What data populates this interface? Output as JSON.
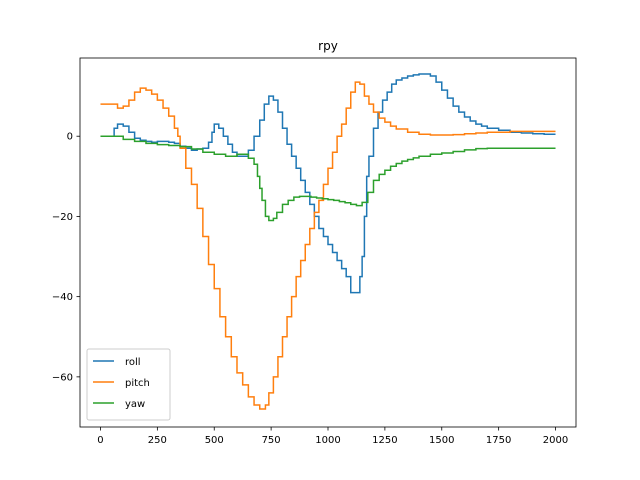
{
  "chart_data": {
    "type": "line",
    "title": "rpy",
    "xlabel": "",
    "ylabel": "",
    "xlim": [
      -90,
      2090
    ],
    "ylim": [
      -72.5,
      19.5
    ],
    "xticks": [
      0,
      250,
      500,
      750,
      1000,
      1250,
      1500,
      1750,
      2000
    ],
    "yticks": [
      -60,
      -40,
      -20,
      0
    ],
    "ytick_labels": [
      "−60",
      "−40",
      "−20",
      "0"
    ],
    "grid": false,
    "legend_position": "lower-left",
    "step": true,
    "series": [
      {
        "name": "roll",
        "color": "#1f77b4",
        "points": [
          [
            0,
            0
          ],
          [
            50,
            0
          ],
          [
            60,
            2
          ],
          [
            75,
            3
          ],
          [
            100,
            2.5
          ],
          [
            125,
            1
          ],
          [
            150,
            -0.5
          ],
          [
            175,
            -1
          ],
          [
            200,
            -1.3
          ],
          [
            225,
            -1.5
          ],
          [
            250,
            -1.3
          ],
          [
            275,
            -1.3
          ],
          [
            300,
            -1.5
          ],
          [
            325,
            -1.8
          ],
          [
            350,
            -2.5
          ],
          [
            375,
            -3
          ],
          [
            400,
            -3.5
          ],
          [
            425,
            -3.2
          ],
          [
            450,
            -3
          ],
          [
            475,
            -1.5
          ],
          [
            490,
            1
          ],
          [
            500,
            3
          ],
          [
            520,
            2
          ],
          [
            540,
            0
          ],
          [
            560,
            -2
          ],
          [
            580,
            -4
          ],
          [
            600,
            -5
          ],
          [
            625,
            -5
          ],
          [
            650,
            -3.5
          ],
          [
            675,
            0
          ],
          [
            700,
            4
          ],
          [
            720,
            8
          ],
          [
            740,
            10
          ],
          [
            760,
            9
          ],
          [
            780,
            6
          ],
          [
            800,
            2
          ],
          [
            820,
            -2
          ],
          [
            840,
            -5
          ],
          [
            860,
            -8
          ],
          [
            880,
            -11
          ],
          [
            900,
            -14
          ],
          [
            920,
            -17
          ],
          [
            940,
            -20
          ],
          [
            960,
            -23
          ],
          [
            980,
            -25
          ],
          [
            1000,
            -27
          ],
          [
            1020,
            -29
          ],
          [
            1040,
            -31
          ],
          [
            1060,
            -33
          ],
          [
            1080,
            -35
          ],
          [
            1100,
            -39
          ],
          [
            1120,
            -39
          ],
          [
            1140,
            -35
          ],
          [
            1150,
            -30
          ],
          [
            1160,
            -20
          ],
          [
            1170,
            -10
          ],
          [
            1180,
            -5
          ],
          [
            1200,
            2
          ],
          [
            1220,
            6
          ],
          [
            1240,
            9
          ],
          [
            1260,
            11
          ],
          [
            1280,
            13
          ],
          [
            1300,
            14
          ],
          [
            1325,
            14.5
          ],
          [
            1350,
            15
          ],
          [
            1375,
            15.3
          ],
          [
            1400,
            15.5
          ],
          [
            1425,
            15.5
          ],
          [
            1450,
            15
          ],
          [
            1475,
            13.5
          ],
          [
            1500,
            11.5
          ],
          [
            1525,
            9.5
          ],
          [
            1550,
            7.5
          ],
          [
            1575,
            6
          ],
          [
            1600,
            4.8
          ],
          [
            1625,
            3.8
          ],
          [
            1650,
            3
          ],
          [
            1675,
            2.5
          ],
          [
            1700,
            2
          ],
          [
            1750,
            1.5
          ],
          [
            1800,
            1
          ],
          [
            1850,
            0.8
          ],
          [
            1900,
            0.6
          ],
          [
            1950,
            0.5
          ],
          [
            2000,
            0.5
          ]
        ]
      },
      {
        "name": "pitch",
        "color": "#ff7f0e",
        "points": [
          [
            0,
            8
          ],
          [
            50,
            8
          ],
          [
            75,
            7
          ],
          [
            100,
            7.5
          ],
          [
            125,
            9
          ],
          [
            150,
            11
          ],
          [
            175,
            12
          ],
          [
            200,
            11.5
          ],
          [
            225,
            10.5
          ],
          [
            250,
            9
          ],
          [
            275,
            7
          ],
          [
            300,
            5
          ],
          [
            325,
            2
          ],
          [
            340,
            0
          ],
          [
            350,
            -3
          ],
          [
            375,
            -8
          ],
          [
            400,
            -12
          ],
          [
            425,
            -18
          ],
          [
            450,
            -25
          ],
          [
            475,
            -32
          ],
          [
            500,
            -38
          ],
          [
            525,
            -45
          ],
          [
            550,
            -50
          ],
          [
            575,
            -55
          ],
          [
            600,
            -59
          ],
          [
            625,
            -62
          ],
          [
            650,
            -65
          ],
          [
            675,
            -67
          ],
          [
            700,
            -68
          ],
          [
            725,
            -67
          ],
          [
            740,
            -64
          ],
          [
            760,
            -60
          ],
          [
            780,
            -55
          ],
          [
            800,
            -50
          ],
          [
            820,
            -45
          ],
          [
            840,
            -40
          ],
          [
            860,
            -35
          ],
          [
            880,
            -31
          ],
          [
            900,
            -27
          ],
          [
            920,
            -23
          ],
          [
            940,
            -19
          ],
          [
            960,
            -16
          ],
          [
            980,
            -12
          ],
          [
            1000,
            -8
          ],
          [
            1020,
            -4
          ],
          [
            1040,
            0
          ],
          [
            1060,
            3
          ],
          [
            1080,
            7
          ],
          [
            1100,
            11
          ],
          [
            1120,
            13.5
          ],
          [
            1140,
            13
          ],
          [
            1160,
            10
          ],
          [
            1180,
            8
          ],
          [
            1200,
            6
          ],
          [
            1225,
            4.5
          ],
          [
            1250,
            3.5
          ],
          [
            1275,
            2.5
          ],
          [
            1300,
            1.8
          ],
          [
            1350,
            1
          ],
          [
            1400,
            0.5
          ],
          [
            1450,
            0.3
          ],
          [
            1500,
            0.3
          ],
          [
            1550,
            0.4
          ],
          [
            1600,
            0.6
          ],
          [
            1650,
            0.8
          ],
          [
            1700,
            1
          ],
          [
            1750,
            1
          ],
          [
            1800,
            1.2
          ],
          [
            1900,
            1.2
          ],
          [
            2000,
            1.2
          ]
        ]
      },
      {
        "name": "yaw",
        "color": "#2ca02c",
        "points": [
          [
            0,
            0
          ],
          [
            50,
            0
          ],
          [
            100,
            -0.8
          ],
          [
            150,
            -1.3
          ],
          [
            200,
            -1.8
          ],
          [
            250,
            -2.1
          ],
          [
            300,
            -2.3
          ],
          [
            350,
            -2.6
          ],
          [
            400,
            -3.2
          ],
          [
            450,
            -4
          ],
          [
            500,
            -4.5
          ],
          [
            550,
            -5
          ],
          [
            600,
            -4.5
          ],
          [
            650,
            -5.5
          ],
          [
            675,
            -7
          ],
          [
            690,
            -10
          ],
          [
            700,
            -13
          ],
          [
            710,
            -16
          ],
          [
            725,
            -20
          ],
          [
            740,
            -21
          ],
          [
            760,
            -20.5
          ],
          [
            775,
            -19
          ],
          [
            800,
            -17
          ],
          [
            825,
            -16
          ],
          [
            850,
            -15.2
          ],
          [
            875,
            -15
          ],
          [
            900,
            -15
          ],
          [
            925,
            -15.2
          ],
          [
            950,
            -15.4
          ],
          [
            975,
            -15.6
          ],
          [
            1000,
            -15.8
          ],
          [
            1025,
            -16
          ],
          [
            1050,
            -16.3
          ],
          [
            1075,
            -16.6
          ],
          [
            1100,
            -17
          ],
          [
            1125,
            -17.3
          ],
          [
            1150,
            -16.5
          ],
          [
            1175,
            -14
          ],
          [
            1200,
            -11
          ],
          [
            1225,
            -9.5
          ],
          [
            1250,
            -8.5
          ],
          [
            1275,
            -7.5
          ],
          [
            1300,
            -6.8
          ],
          [
            1325,
            -6.2
          ],
          [
            1350,
            -5.8
          ],
          [
            1375,
            -5.4
          ],
          [
            1400,
            -5
          ],
          [
            1450,
            -4.5
          ],
          [
            1500,
            -4.2
          ],
          [
            1550,
            -3.8
          ],
          [
            1600,
            -3.4
          ],
          [
            1650,
            -3.1
          ],
          [
            1700,
            -3
          ],
          [
            1750,
            -3
          ],
          [
            1800,
            -3
          ],
          [
            1900,
            -3
          ],
          [
            2000,
            -3
          ]
        ]
      }
    ]
  }
}
